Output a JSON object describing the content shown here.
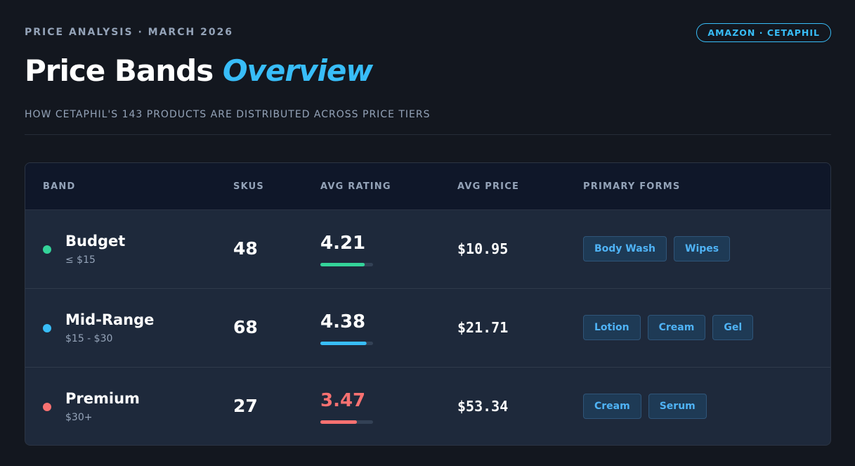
{
  "header": {
    "eyebrow": "PRICE ANALYSIS · MARCH 2026",
    "badge": "AMAZON · CETAPHIL",
    "title": "Price Bands",
    "title_accent": "Overview",
    "subtitle": "HOW CETAPHIL'S 143 PRODUCTS ARE DISTRIBUTED ACROSS PRICE TIERS"
  },
  "table": {
    "columns": [
      "BAND",
      "SKUS",
      "AVG RATING",
      "AVG PRICE",
      "PRIMARY FORMS"
    ],
    "rating_lim": [
      0,
      5
    ],
    "rows": [
      {
        "band": "Budget",
        "range": "≤ $15",
        "skus": 48,
        "rating": 4.21,
        "price": "$10.95",
        "forms": [
          "Body Wash",
          "Wipes"
        ],
        "color": "#34d399",
        "rating_color": "#ffffff"
      },
      {
        "band": "Mid-Range",
        "range": "$15 - $30",
        "skus": 68,
        "rating": 4.38,
        "price": "$21.71",
        "forms": [
          "Lotion",
          "Cream",
          "Gel"
        ],
        "color": "#38bdf8",
        "rating_color": "#ffffff"
      },
      {
        "band": "Premium",
        "range": "$30+",
        "skus": 27,
        "rating": 3.47,
        "price": "$53.34",
        "forms": [
          "Cream",
          "Serum"
        ],
        "color": "#f87171",
        "rating_color": "#f87171"
      }
    ]
  }
}
